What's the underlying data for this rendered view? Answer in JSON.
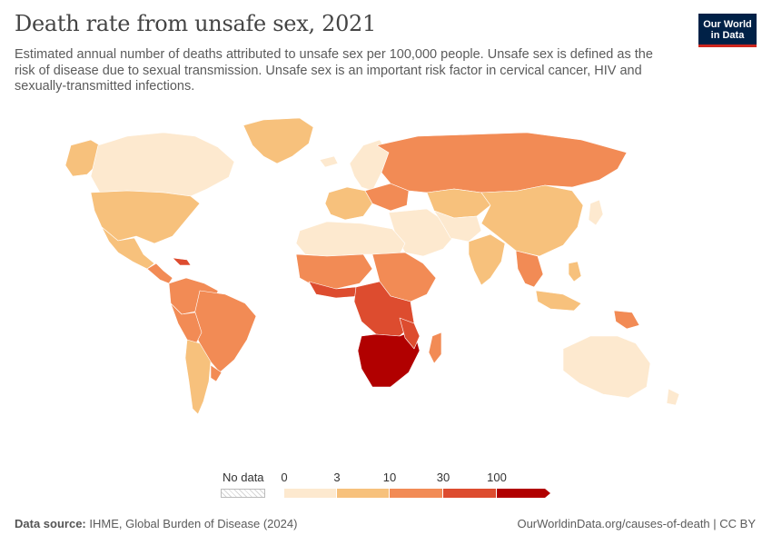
{
  "header": {
    "title": "Death rate from unsafe sex, 2021",
    "subtitle": "Estimated annual number of deaths attributed to unsafe sex per 100,000 people. Unsafe sex is defined as the risk of disease due to sexual transmission. Unsafe sex is an important risk factor in cervical cancer, HIV and sexually-transmitted infections.",
    "logo_line1": "Our World",
    "logo_line2": "in Data"
  },
  "colors": {
    "brand_navy": "#002147",
    "brand_red": "#ce261e",
    "bin_0_3": "#fde9cf",
    "bin_3_10": "#f7c17c",
    "bin_10_30": "#f28b55",
    "bin_30_100": "#dd4c2f",
    "bin_100_plus": "#b10000",
    "no_data": "#e5e5e5"
  },
  "legend": {
    "no_data_label": "No data",
    "ticks": [
      "0",
      "3",
      "10",
      "30",
      "100"
    ]
  },
  "footer": {
    "source_label": "Data source:",
    "source_text": "IHME, Global Burden of Disease (2024)",
    "url": "OurWorldinData.org/causes-of-death | CC BY"
  }
}
